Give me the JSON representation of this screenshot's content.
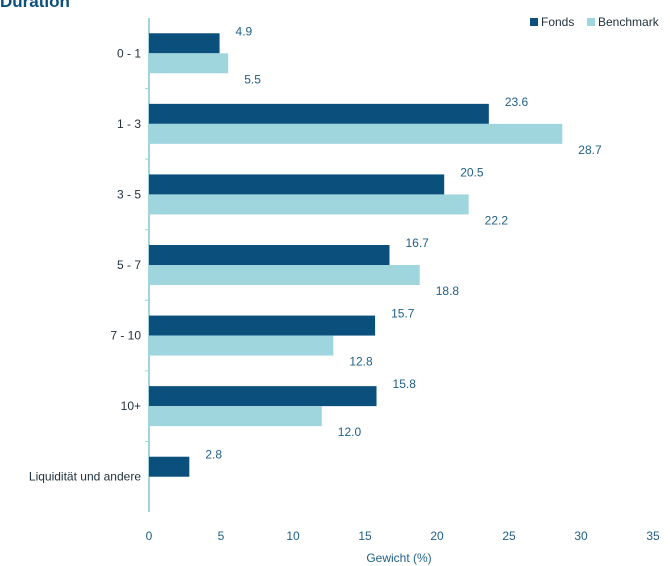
{
  "chart_data": {
    "type": "bar",
    "orientation": "horizontal",
    "title": "Duration",
    "xlabel": "Gewicht (%)",
    "categories": [
      "0 - 1",
      "1 - 3",
      "3 - 5",
      "5 - 7",
      "7 - 10",
      "10+",
      "Liquidität und andere"
    ],
    "series": [
      {
        "name": "Fonds",
        "color": "#0b4f7c",
        "values": [
          4.9,
          23.6,
          20.5,
          16.7,
          15.7,
          15.8,
          2.8
        ]
      },
      {
        "name": "Benchmark",
        "color": "#9fd6de",
        "values": [
          5.5,
          28.7,
          22.2,
          18.8,
          12.8,
          12.0,
          null
        ]
      }
    ],
    "xlim": [
      0,
      35
    ],
    "xticks": [
      0,
      5,
      10,
      15,
      20,
      25,
      30,
      35
    ],
    "grid": false,
    "legend_position": "top-right"
  }
}
